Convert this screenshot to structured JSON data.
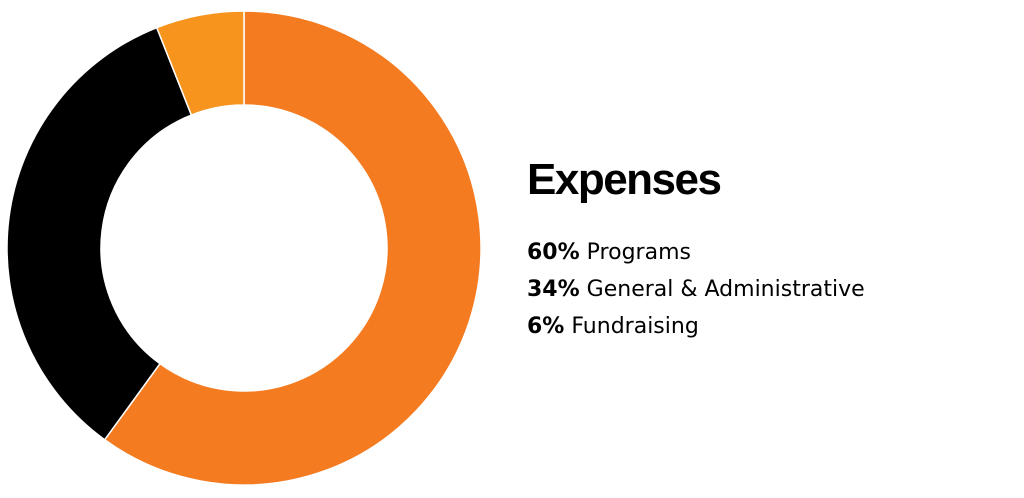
{
  "chart_data": {
    "type": "pie",
    "title": "Expenses",
    "categories": [
      "Programs",
      "General & Administrative",
      "Fundraising"
    ],
    "values": [
      60,
      34,
      6
    ],
    "value_labels": [
      "60%",
      "34%",
      "6%"
    ],
    "colors": [
      "#F47B20",
      "#000000",
      "#F7941D"
    ],
    "donut": true,
    "legend": "right"
  }
}
